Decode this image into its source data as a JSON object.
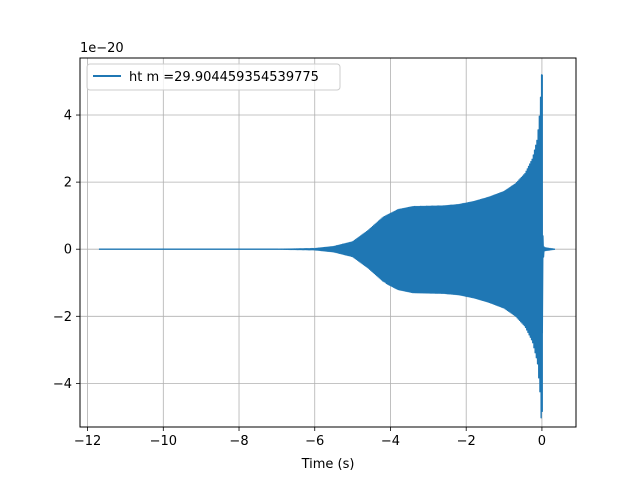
{
  "chart_data": {
    "type": "line",
    "title": "",
    "xlabel": "Time (s)",
    "ylabel": "",
    "offset_text": "1e−20",
    "xlim": [
      -12.2,
      0.9
    ],
    "ylim": [
      -5.3,
      5.7
    ],
    "xticks": [
      -12,
      -10,
      -8,
      -6,
      -4,
      -2,
      0
    ],
    "xtick_labels": [
      "−12",
      "−10",
      "−8",
      "−6",
      "−4",
      "−2",
      "0"
    ],
    "yticks": [
      -4,
      -2,
      0,
      2,
      4
    ],
    "ytick_labels": [
      "−4",
      "−2",
      "0",
      "2",
      "4"
    ],
    "grid": true,
    "legend_position": "top-left",
    "color": "#1f77b4",
    "series": [
      {
        "name": "ht m =29.904459354539775",
        "t_start": -11.7,
        "t_merger": 0.0,
        "t_end": 0.35,
        "envelope": [
          [
            -11.7,
            0.0
          ],
          [
            -7.0,
            0.0
          ],
          [
            -6.0,
            0.02
          ],
          [
            -5.5,
            0.08
          ],
          [
            -5.0,
            0.22
          ],
          [
            -4.6,
            0.55
          ],
          [
            -4.2,
            0.95
          ],
          [
            -3.8,
            1.18
          ],
          [
            -3.4,
            1.27
          ],
          [
            -3.0,
            1.28
          ],
          [
            -2.6,
            1.29
          ],
          [
            -2.2,
            1.33
          ],
          [
            -1.8,
            1.42
          ],
          [
            -1.4,
            1.55
          ],
          [
            -1.0,
            1.72
          ],
          [
            -0.7,
            1.95
          ],
          [
            -0.45,
            2.25
          ],
          [
            -0.25,
            2.7
          ],
          [
            -0.12,
            3.3
          ],
          [
            -0.05,
            4.2
          ],
          [
            -0.01,
            5.2
          ],
          [
            0.0,
            5.2
          ],
          [
            0.02,
            0.5
          ],
          [
            0.06,
            0.05
          ],
          [
            0.35,
            0.0
          ]
        ],
        "peak_max": 5.2,
        "peak_min": -4.85
      }
    ]
  }
}
